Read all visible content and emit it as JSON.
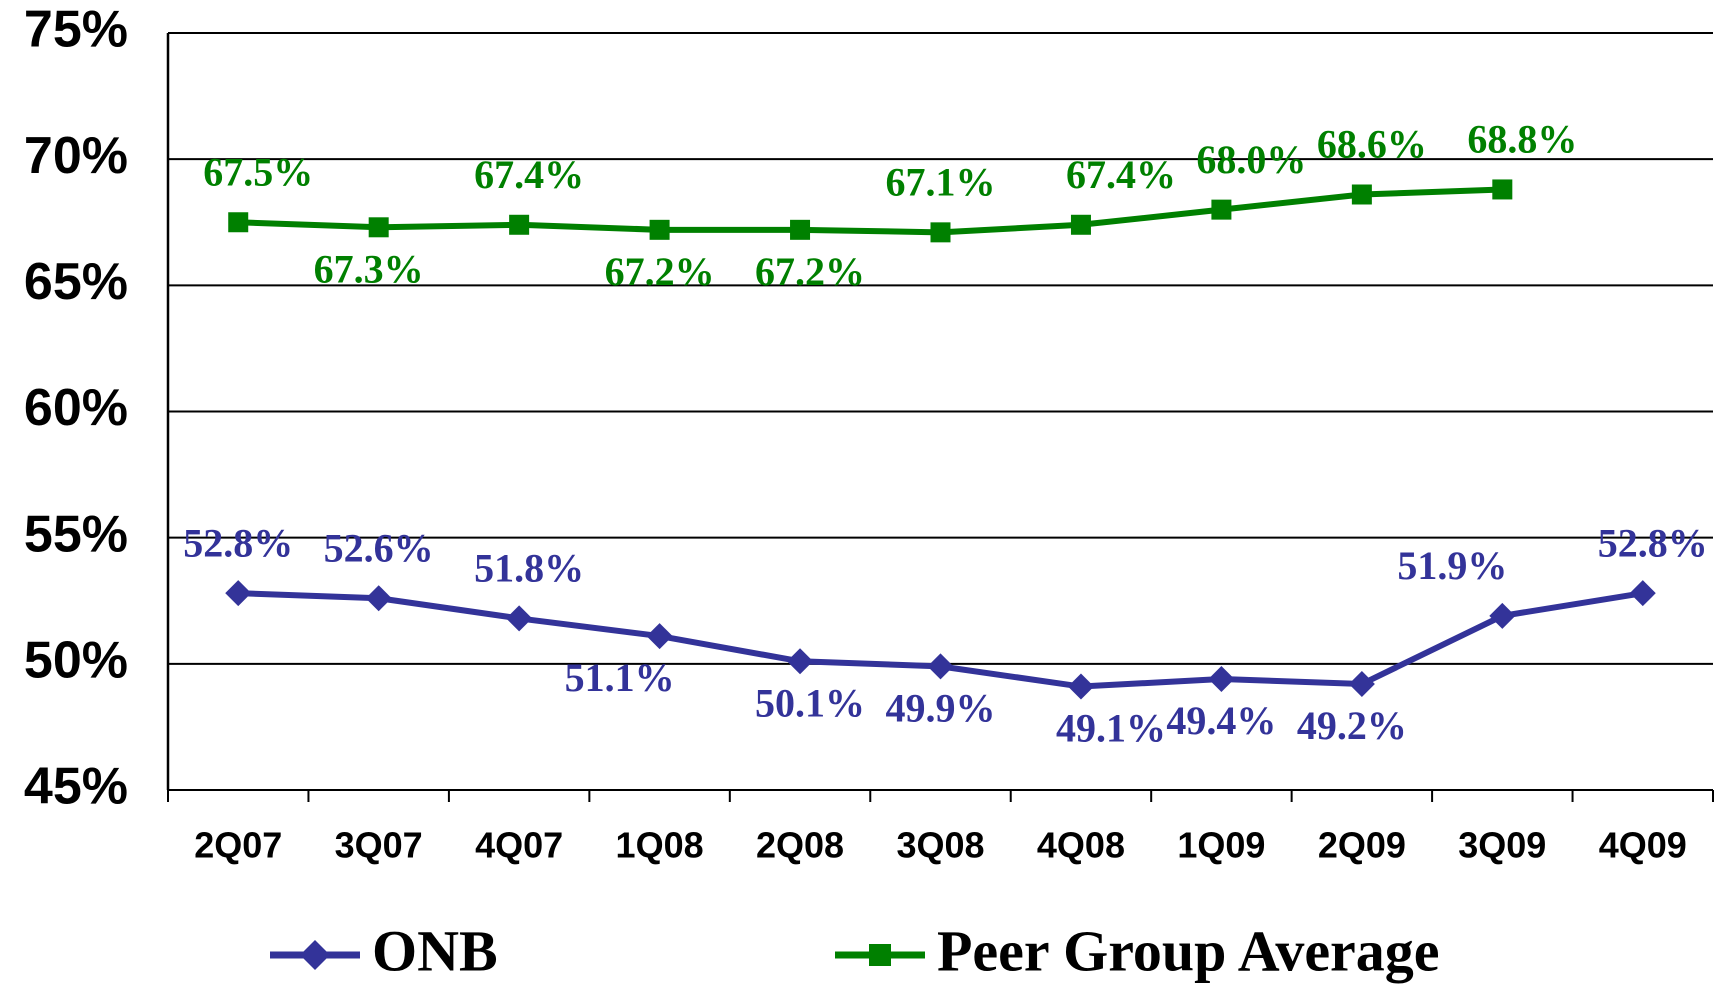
{
  "chart_data": {
    "type": "line",
    "categories": [
      "2Q07",
      "3Q07",
      "4Q07",
      "1Q08",
      "2Q08",
      "3Q08",
      "4Q08",
      "1Q09",
      "2Q09",
      "3Q09",
      "4Q09"
    ],
    "series": [
      {
        "name": "ONB",
        "color": "#333399",
        "marker": "diamond",
        "values": [
          52.8,
          52.6,
          51.8,
          51.1,
          50.1,
          49.9,
          49.1,
          49.4,
          49.2,
          51.9,
          52.8
        ],
        "value_labels": [
          "52.8%",
          "52.6%",
          "51.8%",
          "51.1%",
          "50.1%",
          "49.9%",
          "49.1%",
          "49.4%",
          "49.2%",
          "51.9%",
          "52.8%"
        ]
      },
      {
        "name": "Peer Group Average",
        "color": "#008000",
        "marker": "square",
        "values": [
          67.5,
          67.3,
          67.4,
          67.2,
          67.2,
          67.1,
          67.4,
          68.0,
          68.6,
          68.8,
          null
        ],
        "value_labels": [
          "67.5%",
          "67.3%",
          "67.4%",
          "67.2%",
          "67.2%",
          "67.1%",
          "67.4%",
          "68.0%",
          "68.6%",
          "68.8%",
          null
        ]
      }
    ],
    "ylim": [
      45,
      75
    ],
    "yticks": [
      {
        "value": 45,
        "label": "45%"
      },
      {
        "value": 50,
        "label": "50%"
      },
      {
        "value": 55,
        "label": "55%"
      },
      {
        "value": 60,
        "label": "60%"
      },
      {
        "value": 65,
        "label": "65%"
      },
      {
        "value": 70,
        "label": "70%"
      },
      {
        "value": 75,
        "label": "75%"
      }
    ],
    "grid": true
  }
}
